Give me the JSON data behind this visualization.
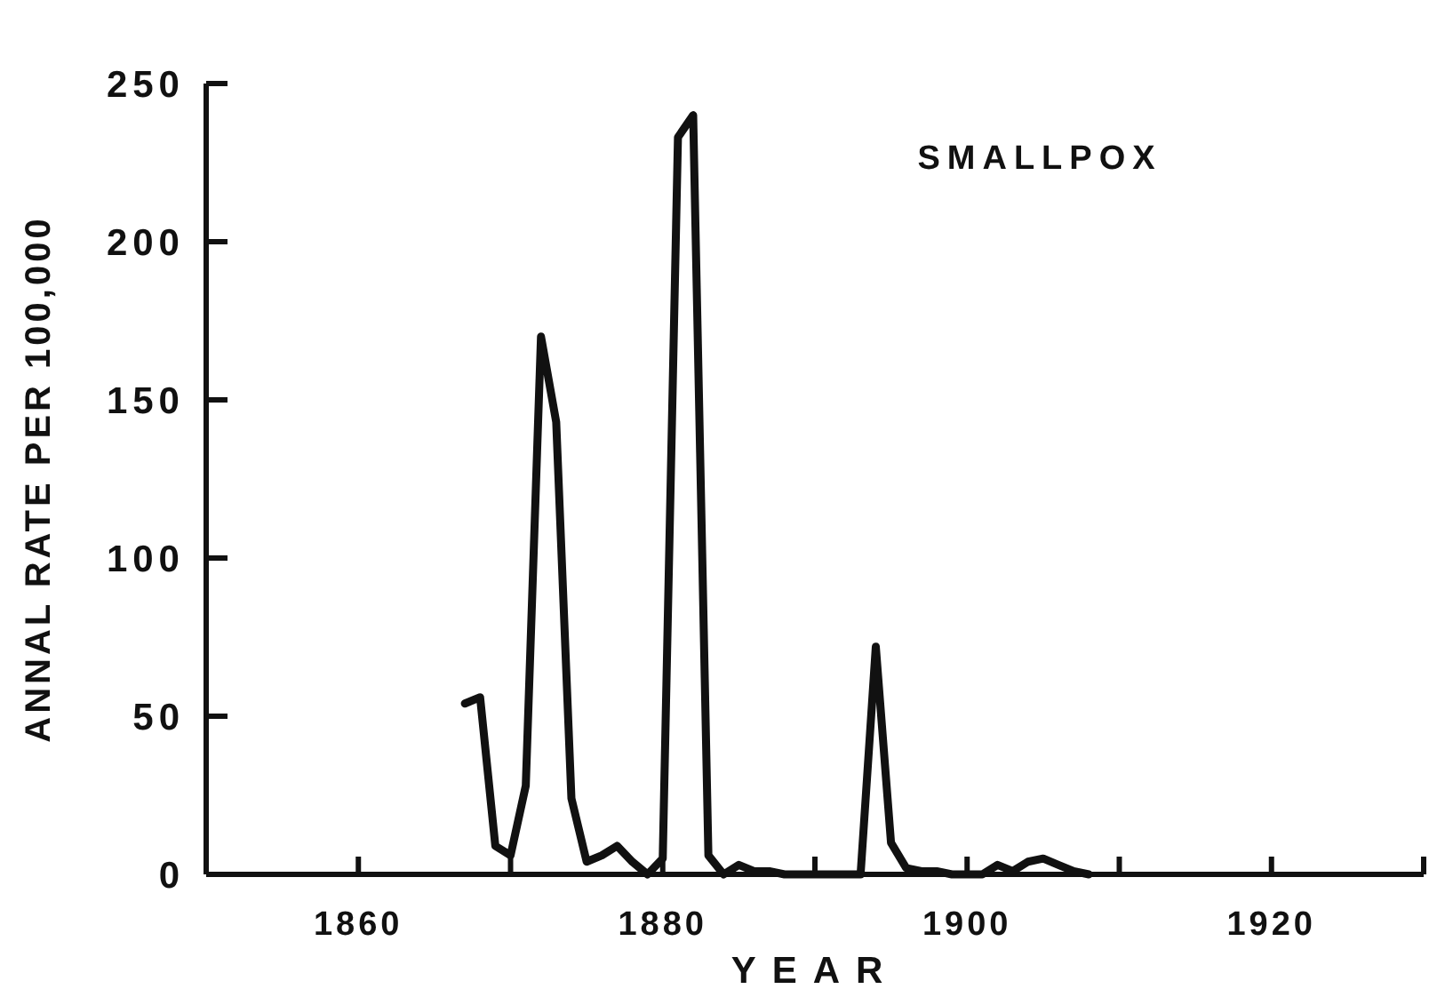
{
  "chart_data": {
    "type": "line",
    "title": "SMALLPOX",
    "xlabel": "YEAR",
    "ylabel": "ANNAL RATE PER 100,000",
    "x": [
      1867,
      1868,
      1869,
      1870,
      1871,
      1872,
      1873,
      1874,
      1875,
      1876,
      1877,
      1878,
      1879,
      1880,
      1881,
      1882,
      1883,
      1884,
      1885,
      1886,
      1887,
      1888,
      1889,
      1890,
      1891,
      1892,
      1893,
      1894,
      1895,
      1896,
      1897,
      1898,
      1899,
      1900,
      1901,
      1902,
      1903,
      1904,
      1905,
      1906,
      1907,
      1908
    ],
    "series": [
      {
        "color": "#111111",
        "values": [
          54,
          56,
          9,
          6,
          28,
          170,
          143,
          24,
          4,
          6,
          9,
          4,
          0,
          5,
          233,
          240,
          6,
          0,
          3,
          1,
          1,
          0,
          0,
          0,
          0,
          0,
          0,
          72,
          10,
          2,
          1,
          1,
          0,
          0,
          0,
          3,
          1,
          4,
          5,
          3,
          1,
          0
        ]
      }
    ],
    "xlim": [
      1850,
      1930
    ],
    "xticks": [
      1860,
      {
        "value": 1870,
        "label": null
      },
      1880,
      {
        "value": 1890,
        "label": null
      },
      1900,
      {
        "value": 1910,
        "label": null
      },
      1920,
      {
        "value": 1930,
        "label": null
      }
    ],
    "ylim": [
      0,
      250
    ],
    "yticks": [
      0,
      50,
      100,
      150,
      200,
      250
    ],
    "grid": false,
    "marker": "none",
    "line_style": "solid"
  }
}
